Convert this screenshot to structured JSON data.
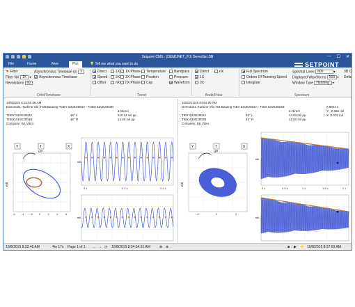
{
  "titlebar": {
    "title": "Setpoint CMS : (DEMONET_PJ) DemoNet DB",
    "minimize": "—",
    "maximize": "☐",
    "close": "✕"
  },
  "logo": {
    "text": "SETPOINT"
  },
  "tabs": [
    "File",
    "Home",
    "View",
    "Plot"
  ],
  "tell_me": "Tell me what you want to do",
  "ribbon": {
    "filter": "Filter",
    "filter_nx_label": "Filter NX",
    "filter_nx_value": "1X",
    "revolutions_label": "Revolutions",
    "revolutions_value": "60",
    "async_timebase_label": "Asynchronous Timebase (s)",
    "async_timebase_value": "2",
    "async_timebase_check": "Asynchronous Timebase",
    "trend_col1": [
      "Direct",
      "Speed",
      "Other"
    ],
    "trend_col2": [
      "1X",
      "2X",
      "nX"
    ],
    "trend_col3": [
      "1X Phase",
      "2X Phase",
      "nX Phase"
    ],
    "trend_col4": [
      "Temperature",
      "Position",
      "Cap"
    ],
    "trend_col5": [
      "Bandpass",
      "Pressure",
      "Waveform"
    ],
    "bode_col1": [
      "Direct",
      "1X",
      "2X"
    ],
    "bode_col2": [
      "nX"
    ],
    "full_spectrum": "Full Spectrum",
    "orders_running_speed": "Orders Of Running Speed",
    "integrate": "Integrate",
    "spectral_lines_label": "Spectral Lines",
    "spectral_lines_value": "800",
    "displayed_waveforms_label": "Displayed Waveforms",
    "displayed_waveforms_value": "500",
    "window_type_label": "Window Type",
    "window_type_value": "Hanning",
    "extra_right_1": "3D C",
    "extra_right_2": "Defa",
    "groups": [
      "Orbit/Timebase",
      "Trend",
      "Bode/Polar",
      "Spectrum"
    ]
  },
  "left_plot": {
    "timestamp": "10/8/2015 8:34:52.68 AM",
    "path": "Demonet1 :Turbine Vib :TOB Bearing TOBY 63VE2903A - TOBX 63VE2903B",
    "legend": "Direct",
    "ch1_name": "TOBY 63VE2903A",
    "ch1_angle": "45° L",
    "ch1_value": "110.14 mil pp",
    "ch2_name": "TOBX 63VE2903B",
    "ch2_angle": "45° R",
    "ch2_value": "14.60 mil pp",
    "company": "Company:  BK Vibro",
    "orbit_y_label": "Y",
    "orbit_t_label": "T",
    "orbit_x_label": "X",
    "orbit_up": "UP",
    "orbit_yaxis": "mil",
    "orbit_xticks": [
      "-6",
      "-4",
      "-2",
      "0",
      "2",
      "4",
      "6"
    ],
    "wave_xticks": [
      "0 s",
      "0.2 s",
      "0.4 s"
    ],
    "wave_axis": "mil"
  },
  "right_plot": {
    "timestamp": "10/8/2015 8:34:54.90 AM",
    "path": "Demonet1 :Turbine Vib :TIB Bearing TIBY 63VE2902A - TIBX 63VE2902B",
    "legend": "Direct",
    "cursor_values": [
      "0.9942 s",
      "Y: -0.656   mil",
      "X: 0.079   mil"
    ],
    "ch1_name": "TIBY 63VE2902A",
    "ch1_angle": "45° L",
    "ch1_value": "14.03 mil pp",
    "ch2_name": "TIBX 63VE2902B",
    "ch2_angle": "45° R",
    "ch2_value": "12.52 mil pp",
    "company": "Company:  BK Vibro",
    "orbit_y_label": "Y",
    "orbit_t_label": "T",
    "orbit_x_label": "X",
    "orbit_up": "UP",
    "orbit_yaxis": "mil",
    "orbit_xticks": [
      "-2",
      "0",
      "2"
    ],
    "wave_xticks": [
      "0 s",
      "0.5 s",
      "1 s",
      "1.5 s",
      "2 s"
    ],
    "wave_axis": "mil"
  },
  "statusbar": {
    "left_time": "10/8/2015 8:32:46 AM",
    "duration": "4m 17s",
    "page": "Page 1 of 1",
    "center_time": "10/8/2015 8:34:54.91 AM",
    "right_time": "10/8/2015 8:37:03 AM"
  },
  "colors": {
    "accent": "#2b579a",
    "wave_blue": "#4a5fd6",
    "orbit_orange": "#b5763a",
    "marker": "#1a237e"
  }
}
